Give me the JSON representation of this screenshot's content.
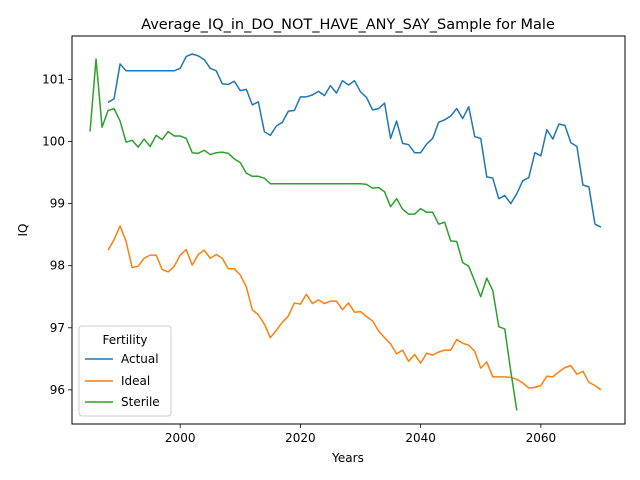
{
  "chart_data": {
    "type": "line",
    "title": "Average_IQ_in_DO_NOT_HAVE_ANY_SAY_Sample for Male",
    "xlabel": "Years",
    "ylabel": "IQ",
    "xlim": [
      1982,
      2074
    ],
    "ylim": [
      95.45,
      101.7
    ],
    "xticks": [
      2000,
      2020,
      2040,
      2060
    ],
    "yticks": [
      96,
      97,
      98,
      99,
      100,
      101
    ],
    "grid": false,
    "legend": {
      "title": "Fertility",
      "placement": "lower-left"
    },
    "series": [
      {
        "name": "Actual",
        "color": "#1f77b4",
        "points": [
          [
            1988,
            100.63
          ],
          [
            1989,
            100.69
          ],
          [
            1990,
            101.25
          ],
          [
            1991,
            101.14
          ],
          [
            1992,
            101.14
          ],
          [
            1993,
            101.14
          ],
          [
            1994,
            101.14
          ],
          [
            1995,
            101.14
          ],
          [
            1996,
            101.14
          ],
          [
            1997,
            101.14
          ],
          [
            1998,
            101.14
          ],
          [
            1999,
            101.14
          ],
          [
            2000,
            101.18
          ],
          [
            2001,
            101.37
          ],
          [
            2002,
            101.41
          ],
          [
            2003,
            101.38
          ],
          [
            2004,
            101.32
          ],
          [
            2005,
            101.18
          ],
          [
            2006,
            101.14
          ],
          [
            2007,
            100.93
          ],
          [
            2008,
            100.92
          ],
          [
            2009,
            100.97
          ],
          [
            2010,
            100.82
          ],
          [
            2011,
            100.84
          ],
          [
            2012,
            100.59
          ],
          [
            2013,
            100.64
          ],
          [
            2014,
            100.16
          ],
          [
            2015,
            100.1
          ],
          [
            2016,
            100.25
          ],
          [
            2017,
            100.31
          ],
          [
            2018,
            100.49
          ],
          [
            2019,
            100.5
          ],
          [
            2020,
            100.72
          ],
          [
            2021,
            100.72
          ],
          [
            2022,
            100.75
          ],
          [
            2023,
            100.81
          ],
          [
            2024,
            100.74
          ],
          [
            2025,
            100.9
          ],
          [
            2026,
            100.78
          ],
          [
            2027,
            100.98
          ],
          [
            2028,
            100.91
          ],
          [
            2029,
            100.98
          ],
          [
            2030,
            100.8
          ],
          [
            2031,
            100.71
          ],
          [
            2032,
            100.51
          ],
          [
            2033,
            100.53
          ],
          [
            2034,
            100.62
          ],
          [
            2035,
            100.05
          ],
          [
            2036,
            100.33
          ],
          [
            2037,
            99.97
          ],
          [
            2038,
            99.95
          ],
          [
            2039,
            99.82
          ],
          [
            2040,
            99.82
          ],
          [
            2041,
            99.96
          ],
          [
            2042,
            100.05
          ],
          [
            2043,
            100.31
          ],
          [
            2044,
            100.35
          ],
          [
            2045,
            100.41
          ],
          [
            2046,
            100.53
          ],
          [
            2047,
            100.37
          ],
          [
            2048,
            100.56
          ],
          [
            2049,
            100.08
          ],
          [
            2050,
            100.05
          ],
          [
            2051,
            99.43
          ],
          [
            2052,
            99.41
          ],
          [
            2053,
            99.08
          ],
          [
            2054,
            99.13
          ],
          [
            2055,
            99.0
          ],
          [
            2056,
            99.16
          ],
          [
            2057,
            99.37
          ],
          [
            2058,
            99.42
          ],
          [
            2059,
            99.82
          ],
          [
            2060,
            99.77
          ],
          [
            2061,
            100.19
          ],
          [
            2062,
            100.04
          ],
          [
            2063,
            100.28
          ],
          [
            2064,
            100.26
          ],
          [
            2065,
            99.98
          ],
          [
            2066,
            99.92
          ],
          [
            2067,
            99.3
          ],
          [
            2068,
            99.27
          ],
          [
            2069,
            98.67
          ],
          [
            2070,
            98.62
          ]
        ]
      },
      {
        "name": "Ideal",
        "color": "#ff7f0e",
        "points": [
          [
            1988,
            98.25
          ],
          [
            1989,
            98.42
          ],
          [
            1990,
            98.64
          ],
          [
            1991,
            98.39
          ],
          [
            1992,
            97.97
          ],
          [
            1993,
            97.99
          ],
          [
            1994,
            98.12
          ],
          [
            1995,
            98.17
          ],
          [
            1996,
            98.17
          ],
          [
            1997,
            97.94
          ],
          [
            1998,
            97.9
          ],
          [
            1999,
            97.99
          ],
          [
            2000,
            98.17
          ],
          [
            2001,
            98.26
          ],
          [
            2002,
            98.01
          ],
          [
            2003,
            98.18
          ],
          [
            2004,
            98.25
          ],
          [
            2005,
            98.12
          ],
          [
            2006,
            98.18
          ],
          [
            2007,
            98.12
          ],
          [
            2008,
            97.95
          ],
          [
            2009,
            97.95
          ],
          [
            2010,
            97.85
          ],
          [
            2011,
            97.66
          ],
          [
            2012,
            97.29
          ],
          [
            2013,
            97.21
          ],
          [
            2014,
            97.06
          ],
          [
            2015,
            96.84
          ],
          [
            2016,
            96.96
          ],
          [
            2017,
            97.09
          ],
          [
            2018,
            97.19
          ],
          [
            2019,
            97.4
          ],
          [
            2020,
            97.38
          ],
          [
            2021,
            97.54
          ],
          [
            2022,
            97.39
          ],
          [
            2023,
            97.45
          ],
          [
            2024,
            97.39
          ],
          [
            2025,
            97.43
          ],
          [
            2026,
            97.43
          ],
          [
            2027,
            97.29
          ],
          [
            2028,
            97.4
          ],
          [
            2029,
            97.25
          ],
          [
            2030,
            97.26
          ],
          [
            2031,
            97.18
          ],
          [
            2032,
            97.11
          ],
          [
            2033,
            96.95
          ],
          [
            2034,
            96.84
          ],
          [
            2035,
            96.74
          ],
          [
            2036,
            96.58
          ],
          [
            2037,
            96.64
          ],
          [
            2038,
            96.46
          ],
          [
            2039,
            96.57
          ],
          [
            2040,
            96.43
          ],
          [
            2041,
            96.59
          ],
          [
            2042,
            96.56
          ],
          [
            2043,
            96.61
          ],
          [
            2044,
            96.64
          ],
          [
            2045,
            96.64
          ],
          [
            2046,
            96.81
          ],
          [
            2047,
            96.75
          ],
          [
            2048,
            96.72
          ],
          [
            2049,
            96.62
          ],
          [
            2050,
            96.35
          ],
          [
            2051,
            96.45
          ],
          [
            2052,
            96.21
          ],
          [
            2053,
            96.21
          ],
          [
            2054,
            96.21
          ],
          [
            2055,
            96.2
          ],
          [
            2056,
            96.17
          ],
          [
            2057,
            96.11
          ],
          [
            2058,
            96.03
          ],
          [
            2059,
            96.04
          ],
          [
            2060,
            96.07
          ],
          [
            2061,
            96.22
          ],
          [
            2062,
            96.21
          ],
          [
            2063,
            96.29
          ],
          [
            2064,
            96.36
          ],
          [
            2065,
            96.39
          ],
          [
            2066,
            96.25
          ],
          [
            2067,
            96.3
          ],
          [
            2068,
            96.12
          ],
          [
            2069,
            96.07
          ],
          [
            2070,
            96.0
          ]
        ]
      },
      {
        "name": "Sterile",
        "color": "#2ca02c",
        "points": [
          [
            1985,
            100.16
          ],
          [
            1986,
            101.33
          ],
          [
            1987,
            100.23
          ],
          [
            1988,
            100.5
          ],
          [
            1989,
            100.53
          ],
          [
            1990,
            100.33
          ],
          [
            1991,
            99.99
          ],
          [
            1992,
            100.02
          ],
          [
            1993,
            99.91
          ],
          [
            1994,
            100.04
          ],
          [
            1995,
            99.92
          ],
          [
            1996,
            100.1
          ],
          [
            1997,
            100.03
          ],
          [
            1998,
            100.16
          ],
          [
            1999,
            100.09
          ],
          [
            2000,
            100.09
          ],
          [
            2001,
            100.05
          ],
          [
            2002,
            99.82
          ],
          [
            2003,
            99.81
          ],
          [
            2004,
            99.86
          ],
          [
            2005,
            99.79
          ],
          [
            2006,
            99.82
          ],
          [
            2007,
            99.83
          ],
          [
            2008,
            99.81
          ],
          [
            2009,
            99.72
          ],
          [
            2010,
            99.66
          ],
          [
            2011,
            99.49
          ],
          [
            2012,
            99.44
          ],
          [
            2013,
            99.44
          ],
          [
            2014,
            99.41
          ],
          [
            2015,
            99.32
          ],
          [
            2016,
            99.32
          ],
          [
            2017,
            99.32
          ],
          [
            2018,
            99.32
          ],
          [
            2019,
            99.32
          ],
          [
            2020,
            99.32
          ],
          [
            2021,
            99.32
          ],
          [
            2022,
            99.32
          ],
          [
            2023,
            99.32
          ],
          [
            2024,
            99.32
          ],
          [
            2025,
            99.32
          ],
          [
            2026,
            99.32
          ],
          [
            2027,
            99.32
          ],
          [
            2028,
            99.32
          ],
          [
            2029,
            99.32
          ],
          [
            2030,
            99.32
          ],
          [
            2031,
            99.31
          ],
          [
            2032,
            99.25
          ],
          [
            2033,
            99.26
          ],
          [
            2034,
            99.19
          ],
          [
            2035,
            98.95
          ],
          [
            2036,
            99.08
          ],
          [
            2037,
            98.91
          ],
          [
            2038,
            98.83
          ],
          [
            2039,
            98.83
          ],
          [
            2040,
            98.92
          ],
          [
            2041,
            98.86
          ],
          [
            2042,
            98.86
          ],
          [
            2043,
            98.67
          ],
          [
            2044,
            98.7
          ],
          [
            2045,
            98.4
          ],
          [
            2046,
            98.39
          ],
          [
            2047,
            98.05
          ],
          [
            2048,
            97.99
          ],
          [
            2049,
            97.75
          ],
          [
            2050,
            97.5
          ],
          [
            2051,
            97.8
          ],
          [
            2052,
            97.6
          ],
          [
            2053,
            97.02
          ],
          [
            2054,
            96.98
          ],
          [
            2055,
            96.3
          ],
          [
            2056,
            95.67
          ]
        ]
      }
    ]
  }
}
